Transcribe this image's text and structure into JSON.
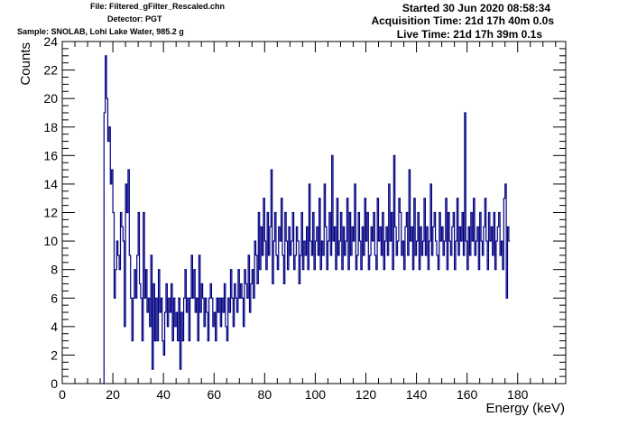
{
  "header": {
    "file": "File: Filtered_gFilter_Rescaled.chn",
    "detector": "Detector: PGT",
    "sample": "Sample: SNOLAB, Lohi Lake Water, 985.2 g",
    "started": "Started 30 Jun 2020 08:58:34",
    "acquisition_time": "Acquisition Time: 21d 17h 40m 0.0s",
    "live_time": "Live Time: 21d 17h 39m 0.1s"
  },
  "chart_data": {
    "type": "histogram",
    "title": "",
    "xlabel": "Energy (keV)",
    "ylabel": "Counts",
    "xlim": [
      0,
      199
    ],
    "ylim": [
      0,
      24
    ],
    "x_ticks": [
      0,
      20,
      40,
      60,
      80,
      100,
      120,
      140,
      160,
      180
    ],
    "y_ticks": [
      0,
      2,
      4,
      6,
      8,
      10,
      12,
      14,
      16,
      18,
      20,
      22,
      24
    ],
    "grid": false,
    "legend": "none",
    "line_color": "#000080",
    "bin_start": 16,
    "bin_width": 0.5,
    "values": [
      0,
      19,
      23,
      20,
      17,
      18,
      14,
      15,
      12,
      6,
      8,
      10,
      9,
      8,
      12,
      11,
      10,
      4,
      14,
      12,
      15,
      9,
      6,
      3,
      6,
      8,
      6,
      9,
      12,
      7,
      6,
      3,
      12,
      6,
      8,
      5,
      6,
      4,
      9,
      1,
      7,
      3,
      6,
      3,
      8,
      5,
      6,
      3,
      2,
      5,
      7,
      4,
      6,
      5,
      7,
      3,
      6,
      4,
      5,
      3,
      6,
      1,
      5,
      3,
      6,
      8,
      5,
      6,
      3,
      6,
      9,
      6,
      8,
      5,
      6,
      3,
      9,
      5,
      7,
      6,
      4,
      6,
      5,
      3,
      6,
      7,
      6,
      4,
      5,
      3,
      6,
      5,
      6,
      4,
      6,
      5,
      7,
      4,
      3,
      6,
      5,
      8,
      6,
      4,
      7,
      6,
      5,
      8,
      6,
      7,
      6,
      4,
      8,
      7,
      6,
      9,
      5,
      7,
      8,
      6,
      10,
      9,
      7,
      12,
      8,
      11,
      9,
      13,
      10,
      8,
      12,
      9,
      11,
      15,
      7,
      10,
      12,
      9,
      8,
      11,
      10,
      13,
      9,
      7,
      12,
      10,
      8,
      11,
      9,
      10,
      12,
      8,
      9,
      11,
      10,
      7,
      9,
      12,
      8,
      10,
      9,
      11,
      8,
      14,
      10,
      9,
      12,
      8,
      10,
      11,
      9,
      13,
      8,
      10,
      9,
      14,
      11,
      8,
      10,
      12,
      9,
      16,
      10,
      11,
      8,
      13,
      9,
      10,
      12,
      8,
      11,
      9,
      10,
      13,
      8,
      12,
      9,
      11,
      10,
      14,
      8,
      9,
      12,
      10,
      8,
      11,
      9,
      13,
      10,
      12,
      8,
      9,
      11,
      10,
      12,
      9,
      8,
      13,
      10,
      11,
      9,
      12,
      8,
      10,
      11,
      9,
      14,
      10,
      12,
      8,
      16,
      11,
      9,
      10,
      13,
      12,
      9,
      10,
      8,
      11,
      12,
      9,
      15,
      10,
      11,
      8,
      13,
      9,
      10,
      12,
      8,
      11,
      9,
      10,
      13,
      9,
      11,
      8,
      10,
      14,
      9,
      11,
      12,
      10,
      9,
      8,
      12,
      10,
      11,
      9,
      10,
      13,
      8,
      12,
      10,
      9,
      11,
      12,
      8,
      10,
      13,
      9,
      11,
      10,
      12,
      9,
      19,
      10,
      8,
      11,
      9,
      12,
      10,
      13,
      9,
      10,
      11,
      8,
      12,
      10,
      9,
      11,
      13,
      10,
      8,
      12,
      10,
      11,
      9,
      12,
      8,
      10,
      11,
      12,
      9,
      10,
      8,
      13,
      14,
      6,
      11,
      10
    ]
  }
}
